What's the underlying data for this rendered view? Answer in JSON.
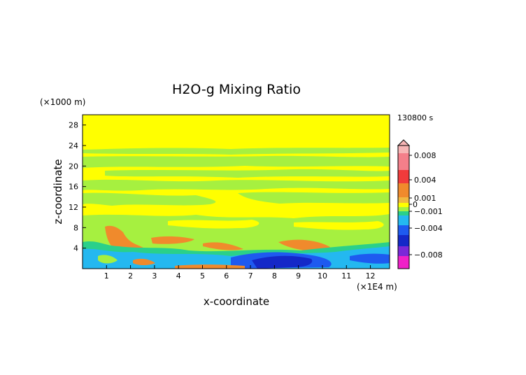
{
  "chart_data": {
    "type": "heatmap",
    "title": "H2O-g Mixing Ratio",
    "xlabel": "x-coordinate",
    "ylabel": "z-coordinate",
    "x_units": "(×1E4 m)",
    "y_units": "(×1000 m)",
    "time_label": "130800 s",
    "xlim": [
      0,
      12.8
    ],
    "ylim": [
      0,
      30
    ],
    "x_ticks": [
      1,
      2,
      3,
      4,
      5,
      6,
      7,
      8,
      9,
      10,
      11,
      12
    ],
    "y_ticks": [
      4,
      8,
      12,
      16,
      20,
      24,
      28
    ],
    "colorbar": {
      "labels": [
        "0.008",
        "0.004",
        "0.001",
        "0",
        "-0.001",
        "-0.004",
        "-0.008"
      ],
      "label_values": [
        0.008,
        0.004,
        0.001,
        0,
        -0.001,
        -0.004,
        -0.008
      ],
      "range": [
        -0.01,
        0.01
      ],
      "colors": {
        "extend_high": "#f7b6b6",
        "high_pink": "#f47f8a",
        "red": "#f03b3b",
        "orange": "#f08a2c",
        "yellow": "#ffff00",
        "green": "#a6f040",
        "teal": "#2ad08a",
        "cyan": "#24b8f0",
        "blue": "#1e5af0",
        "dark_blue": "#1428c8",
        "purple": "#7a28d8",
        "magenta": "#f020c8"
      }
    },
    "field_colors": {
      "background": "#ffff00",
      "green": "#a6f040",
      "orange": "#f08a2c",
      "teal": "#2ad08a",
      "cyan": "#24b8f0",
      "blue": "#1e5af0",
      "dark_blue": "#1428c8"
    }
  }
}
